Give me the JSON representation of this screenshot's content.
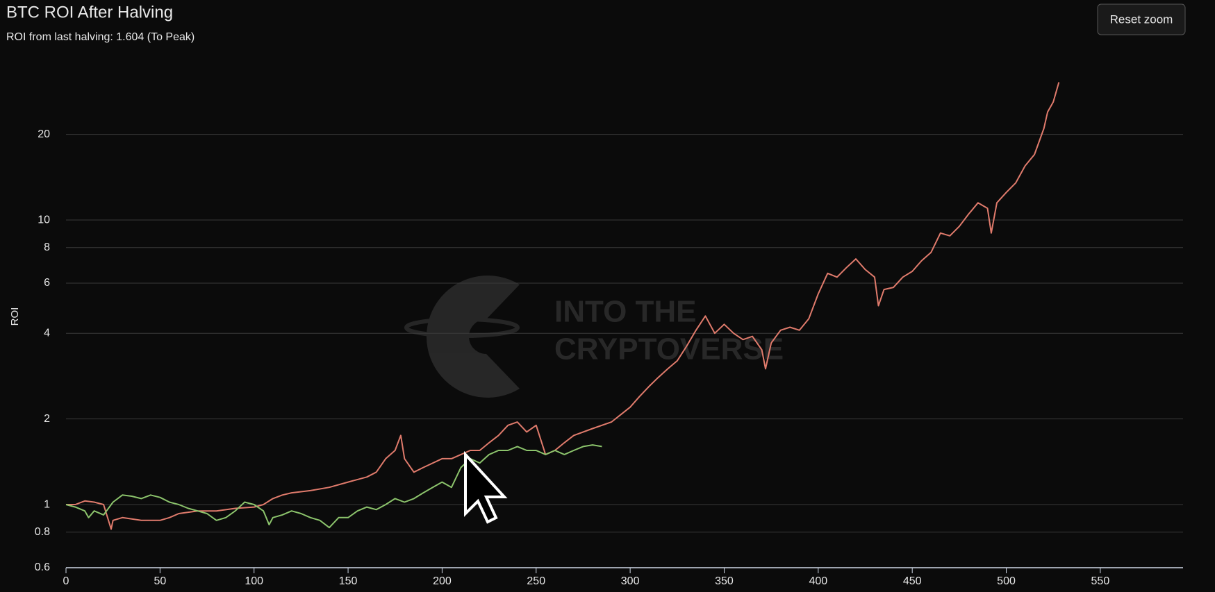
{
  "chart_data": {
    "type": "line",
    "title": "BTC ROI After Halving",
    "subtitle": "ROI from last halving: 1.604 (To Peak)",
    "y_label": "ROI",
    "button": "Reset zoom",
    "watermark": [
      "INTO THE",
      "CRYPTOVERSE"
    ],
    "yscale": "log",
    "grid": true,
    "xlim": [
      0,
      594
    ],
    "ylim": [
      0.6,
      35
    ],
    "xticks": [
      0,
      50,
      100,
      150,
      200,
      250,
      300,
      350,
      400,
      450,
      500,
      550
    ],
    "yticks": [
      0.6,
      0.8,
      1,
      2,
      4,
      6,
      8,
      10,
      20
    ],
    "series": [
      {
        "color": "#e07b6c",
        "x": [
          0,
          5,
          10,
          15,
          20,
          24,
          25,
          30,
          40,
          50,
          55,
          60,
          70,
          80,
          90,
          100,
          105,
          110,
          115,
          120,
          130,
          140,
          150,
          160,
          165,
          170,
          175,
          178,
          180,
          185,
          190,
          200,
          205,
          210,
          215,
          220,
          225,
          230,
          235,
          240,
          245,
          250,
          255,
          260,
          265,
          270,
          280,
          290,
          300,
          305,
          310,
          315,
          320,
          325,
          330,
          335,
          340,
          345,
          350,
          355,
          360,
          365,
          370,
          372,
          375,
          380,
          385,
          390,
          395,
          400,
          405,
          410,
          415,
          420,
          425,
          430,
          432,
          435,
          440,
          445,
          450,
          455,
          460,
          465,
          470,
          475,
          480,
          485,
          490,
          492,
          495,
          500,
          505,
          510,
          515,
          520,
          522,
          525,
          528
        ],
        "values": [
          1.0,
          1.0,
          1.03,
          1.02,
          1.0,
          0.82,
          0.88,
          0.9,
          0.88,
          0.88,
          0.9,
          0.93,
          0.95,
          0.95,
          0.97,
          0.98,
          1.0,
          1.05,
          1.08,
          1.1,
          1.12,
          1.15,
          1.2,
          1.25,
          1.3,
          1.45,
          1.55,
          1.75,
          1.45,
          1.3,
          1.35,
          1.45,
          1.45,
          1.5,
          1.55,
          1.55,
          1.65,
          1.75,
          1.9,
          1.95,
          1.8,
          1.9,
          1.5,
          1.55,
          1.65,
          1.75,
          1.85,
          1.95,
          2.2,
          2.4,
          2.6,
          2.8,
          3.0,
          3.2,
          3.6,
          4.1,
          4.6,
          4.0,
          4.3,
          4.0,
          3.8,
          3.9,
          3.5,
          3.0,
          3.7,
          4.1,
          4.2,
          4.1,
          4.5,
          5.5,
          6.5,
          6.3,
          6.8,
          7.3,
          6.7,
          6.3,
          5.0,
          5.7,
          5.8,
          6.3,
          6.6,
          7.2,
          7.7,
          9.0,
          8.8,
          9.5,
          10.5,
          11.5,
          11.0,
          9.0,
          11.5,
          12.5,
          13.5,
          15.5,
          17.0,
          21,
          24,
          26,
          30.5
        ]
      },
      {
        "color": "#8cc46c",
        "x": [
          0,
          5,
          10,
          12,
          15,
          20,
          25,
          30,
          35,
          40,
          45,
          50,
          55,
          60,
          65,
          70,
          75,
          80,
          85,
          90,
          95,
          100,
          105,
          108,
          110,
          115,
          120,
          125,
          130,
          135,
          140,
          145,
          150,
          155,
          160,
          165,
          170,
          175,
          180,
          185,
          190,
          195,
          200,
          205,
          210,
          215,
          220,
          225,
          230,
          235,
          240,
          245,
          250,
          255,
          260,
          265,
          270,
          275,
          280,
          285
        ],
        "values": [
          1.0,
          0.98,
          0.95,
          0.9,
          0.95,
          0.92,
          1.02,
          1.08,
          1.07,
          1.05,
          1.08,
          1.06,
          1.02,
          1.0,
          0.97,
          0.95,
          0.93,
          0.88,
          0.9,
          0.95,
          1.02,
          1.0,
          0.95,
          0.85,
          0.9,
          0.92,
          0.95,
          0.93,
          0.9,
          0.88,
          0.83,
          0.9,
          0.9,
          0.95,
          0.98,
          0.96,
          1.0,
          1.05,
          1.02,
          1.05,
          1.1,
          1.15,
          1.2,
          1.15,
          1.35,
          1.45,
          1.4,
          1.5,
          1.55,
          1.55,
          1.6,
          1.55,
          1.55,
          1.5,
          1.55,
          1.5,
          1.55,
          1.6,
          1.62,
          1.6
        ]
      }
    ]
  }
}
